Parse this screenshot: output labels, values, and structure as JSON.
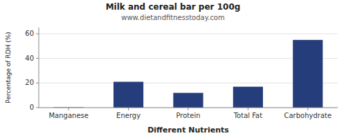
{
  "chart_data": {
    "type": "bar",
    "title": "Milk and cereal bar per 100g",
    "subtitle": "www.dietandfitnesstoday.com",
    "xlabel": "Different Nutrients",
    "ylabel": "Percentage of RDH (%)",
    "categories": [
      "Manganese",
      "Energy",
      "Protein",
      "Total Fat",
      "Carbohydrate"
    ],
    "values": [
      0.3,
      21,
      12,
      17,
      55
    ],
    "color": "#253d7a",
    "ylim": [
      0,
      65
    ],
    "yticks": [
      0,
      20,
      40,
      60
    ],
    "grid": true
  }
}
